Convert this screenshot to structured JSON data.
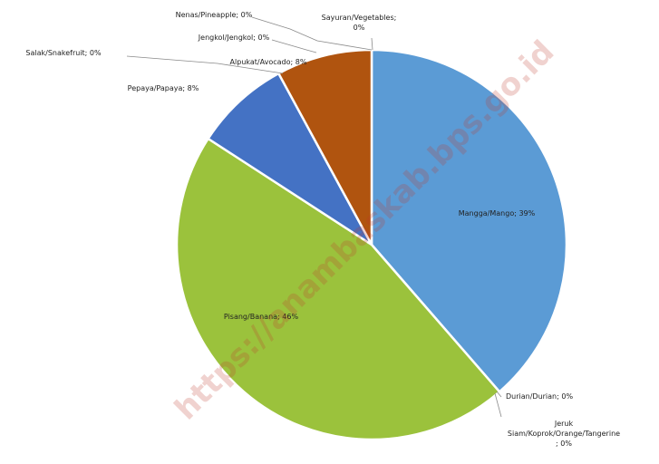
{
  "watermark": "https://anambaskab.bps.go.id",
  "chart_data": {
    "type": "pie",
    "title": "",
    "slices": [
      {
        "label": "Mangga/Mango; 39%",
        "value": 39,
        "color": "#5b9bd5"
      },
      {
        "label": "Durian/Durian; 0%",
        "value": 0,
        "color": "#ed7d31"
      },
      {
        "label": "Jeruk Siam/Koprok/Orange/Tangerine; 0%",
        "value": 0,
        "color": "#a5a5a5"
      },
      {
        "label": "Pisang/Banana; 46%",
        "value": 46,
        "color": "#9bc23c"
      },
      {
        "label": "Pepaya/Papaya; 8%",
        "value": 8,
        "color": "#4472c4"
      },
      {
        "label": "Salak/Snakefruit; 0%",
        "value": 0,
        "color": "#70ad47"
      },
      {
        "label": "Alpukat/Avocado; 8%",
        "value": 8,
        "color": "#b0540f"
      },
      {
        "label": "Jengkol/Jengkol; 0%",
        "value": 0,
        "color": "#264478"
      },
      {
        "label": "Nenas/Pineapple; 0%",
        "value": 0,
        "color": "#636363"
      },
      {
        "label": "Sayuran/Vegetables; 0%",
        "value": 0,
        "color": "#997300"
      }
    ]
  }
}
